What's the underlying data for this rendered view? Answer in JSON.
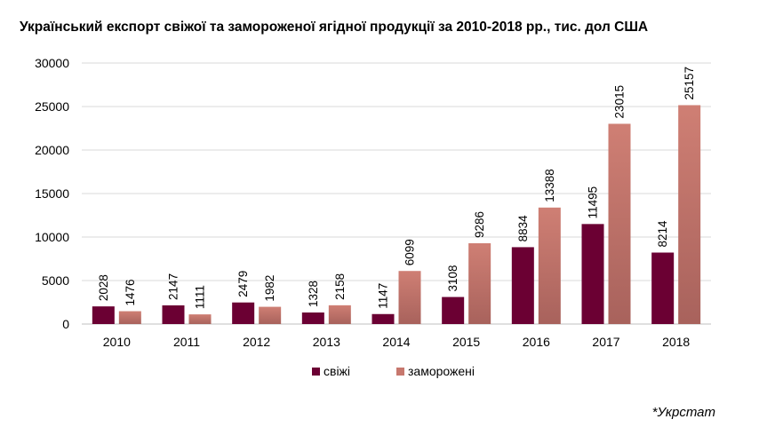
{
  "chart_data": {
    "type": "bar",
    "title": "Український експорт свіжої та замороженої ягідної продукції за 2010-2018 рр., тис. дол США",
    "source": "*Укрстат",
    "categories": [
      "2010",
      "2011",
      "2012",
      "2013",
      "2014",
      "2015",
      "2016",
      "2017",
      "2018"
    ],
    "series": [
      {
        "name": "свіжі",
        "color": "#6b0033",
        "values": [
          2028,
          2147,
          2479,
          1328,
          1147,
          3108,
          8834,
          11495,
          8214
        ]
      },
      {
        "name": "заморожені",
        "color": "#c7786e",
        "values": [
          1476,
          1111,
          1982,
          2158,
          6099,
          9286,
          13388,
          23015,
          25157
        ]
      }
    ],
    "ylim": [
      0,
      30000
    ],
    "yticks": [
      0,
      5000,
      10000,
      15000,
      20000,
      25000,
      30000
    ],
    "grid": true,
    "legend": "bottom-center",
    "xlabel": "",
    "ylabel": ""
  }
}
